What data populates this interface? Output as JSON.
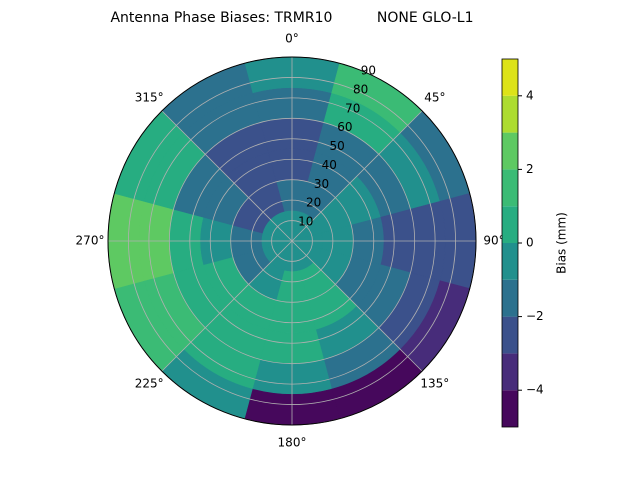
{
  "chart_data": {
    "type": "polar-contour",
    "title": "Antenna Phase Biases: TRMR10          NONE GLO-L1",
    "azimuth": [
      0,
      30,
      60,
      90,
      120,
      150,
      180,
      210,
      240,
      270,
      300,
      330
    ],
    "zenith": [
      7.5,
      22.5,
      37.5,
      52.5,
      67.5,
      82.5
    ],
    "z": [
      [
        -0.5,
        -0.5,
        -0.5,
        -0.5,
        -0.5,
        -0.5,
        -0.5,
        -0.5,
        -0.5,
        -0.5,
        -0.5,
        -0.5
      ],
      [
        -1.5,
        -1,
        -0.5,
        -0.5,
        -0.5,
        0.5,
        0.5,
        -0.5,
        -1.5,
        -1.5,
        -2.5,
        -2.5
      ],
      [
        -2.5,
        -1.5,
        -0.5,
        -1.5,
        -1.5,
        0.5,
        0.5,
        0.5,
        0.5,
        -0.5,
        -1.5,
        -2.5
      ],
      [
        -2.5,
        -1.5,
        -1.5,
        -2.5,
        -1.5,
        -0.5,
        0.5,
        0.5,
        0.5,
        0.5,
        -1.5,
        -2.5
      ],
      [
        -1.5,
        0.5,
        -0.5,
        -2.5,
        -2.5,
        -1.5,
        -0.5,
        0.5,
        1.5,
        2.5,
        0.5,
        -1.5
      ],
      [
        -0.5,
        1.5,
        -1.5,
        -2.5,
        -3.5,
        -4.5,
        -4.5,
        -0.5,
        1.5,
        2.5,
        0.5,
        -1.5
      ]
    ],
    "rlim": [
      0,
      90
    ],
    "rticks": [
      10,
      20,
      30,
      40,
      50,
      60,
      70,
      80,
      90
    ],
    "thetaticks": [
      {
        "value": 0,
        "label": "0°"
      },
      {
        "value": 45,
        "label": "45°"
      },
      {
        "value": 90,
        "label": "90°"
      },
      {
        "value": 135,
        "label": "135°"
      },
      {
        "value": 180,
        "label": "180°"
      },
      {
        "value": 225,
        "label": "225°"
      },
      {
        "value": 270,
        "label": "270°"
      },
      {
        "value": 315,
        "label": "315°"
      }
    ],
    "grid": true,
    "colorbar": {
      "label": "Bias (mm)",
      "levels": [
        -5,
        -4,
        -3,
        -2,
        -1,
        0,
        1,
        2,
        3,
        4,
        5
      ],
      "colors": [
        "#46085c",
        "#472c7a",
        "#3b518b",
        "#2c718e",
        "#21908d",
        "#27ad81",
        "#3bbb75",
        "#5ec962",
        "#addc30",
        "#dde318"
      ],
      "ticks": [
        {
          "value": -4,
          "label": "−4"
        },
        {
          "value": -2,
          "label": "−2"
        },
        0,
        2,
        4
      ]
    }
  }
}
